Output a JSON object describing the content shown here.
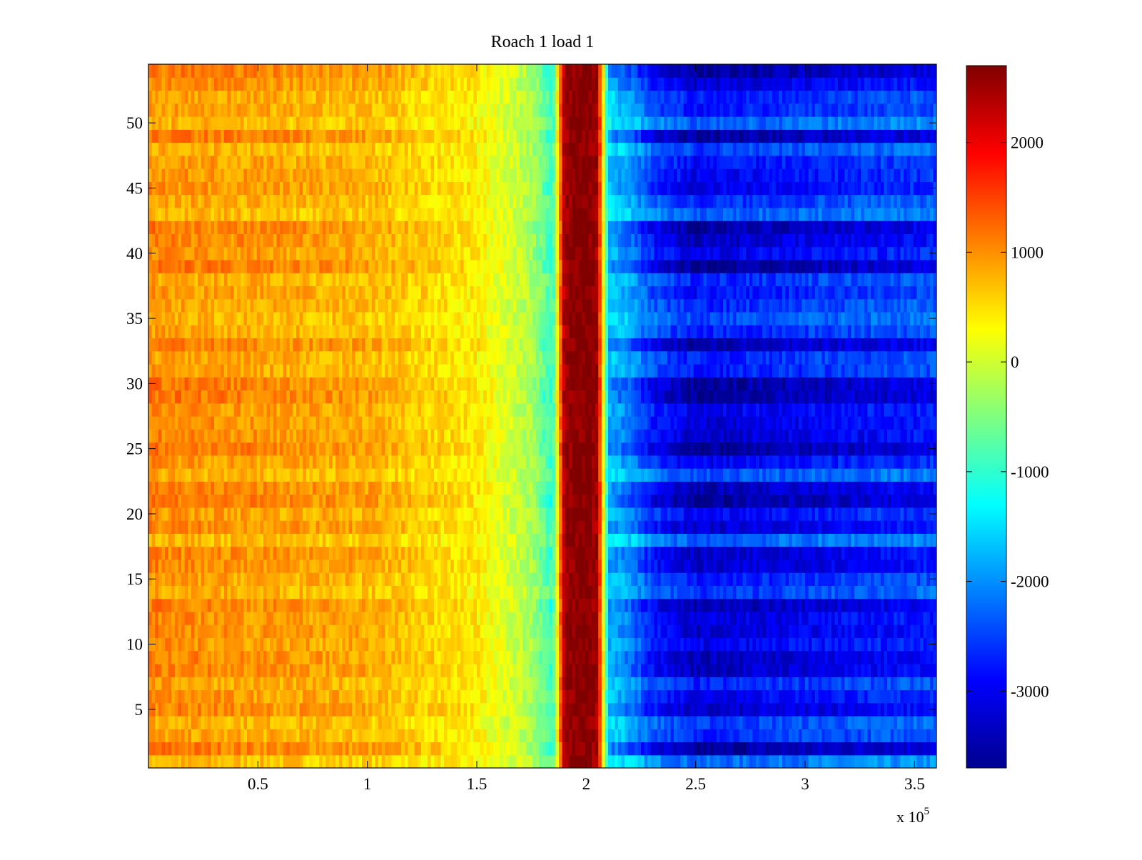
{
  "chart_data": {
    "type": "heatmap",
    "title": "Roach 1 load 1",
    "xlabel": "",
    "ylabel": "",
    "x_exponent_label": "x 10",
    "x_exponent_power": "5",
    "xlim": [
      0,
      3.6
    ],
    "ylim": [
      0.5,
      54.5
    ],
    "x_ticks": [
      0.5,
      1,
      1.5,
      2,
      2.5,
      3,
      3.5
    ],
    "x_tick_labels": [
      "0.5",
      "1",
      "1.5",
      "2",
      "2.5",
      "3",
      "3.5"
    ],
    "y_ticks": [
      5,
      10,
      15,
      20,
      25,
      30,
      35,
      40,
      45,
      50
    ],
    "y_tick_labels": [
      "5",
      "10",
      "15",
      "20",
      "25",
      "30",
      "35",
      "40",
      "45",
      "50"
    ],
    "rows": 54,
    "colormap": "jet",
    "clim": [
      -3700,
      2700
    ],
    "colorbar_ticks": [
      2000,
      1000,
      0,
      -1000,
      -2000,
      -3000
    ],
    "colorbar_tick_labels": [
      "2000",
      "1000",
      "0",
      "-1000",
      "-2000",
      "-3000"
    ],
    "x_profile": {
      "x": [
        0,
        0.5,
        1.0,
        1.5,
        1.75,
        1.85,
        1.9,
        1.95,
        2.0,
        2.05,
        2.1,
        2.2,
        2.3,
        2.5,
        3.0,
        3.6
      ],
      "value": [
        900,
        800,
        700,
        350,
        -200,
        -900,
        2500,
        2700,
        2700,
        2500,
        -1500,
        -1800,
        -2300,
        -2700,
        -2500,
        -2300
      ]
    }
  }
}
